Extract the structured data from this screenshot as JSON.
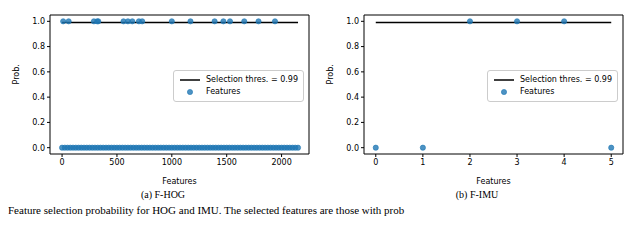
{
  "chart_data": [
    {
      "type": "scatter",
      "title": "(a) F-HOG",
      "x_label": "Features",
      "y_label": "Prob.",
      "xlim": [
        -110,
        2250
      ],
      "xticks": [
        0,
        500,
        1000,
        1500,
        2000
      ],
      "ylim": [
        -0.05,
        1.05
      ],
      "yticks": [
        {
          "value": 0,
          "label": "0.0"
        },
        {
          "value": 0.2,
          "label": "0.2"
        },
        {
          "value": 0.4,
          "label": "0.4"
        },
        {
          "value": 0.6,
          "label": "0.6"
        },
        {
          "value": 0.8,
          "label": "0.8"
        },
        {
          "value": 1,
          "label": "1.0"
        }
      ],
      "grid": false,
      "legend": "right",
      "series": [
        {
          "name": "Selection thres. = 0.99",
          "type": "line",
          "color": "#000000",
          "x": [
            0,
            2150
          ],
          "values": [
            0.99,
            0.99
          ]
        },
        {
          "name": "Features",
          "type": "scatter",
          "color": "#1f77b4",
          "marker": "circle",
          "x": [
            0,
            25,
            50,
            75,
            100,
            125,
            150,
            175,
            200,
            225,
            250,
            275,
            300,
            325,
            350,
            375,
            400,
            425,
            450,
            475,
            500,
            525,
            550,
            575,
            600,
            625,
            650,
            675,
            700,
            725,
            750,
            775,
            800,
            825,
            850,
            875,
            900,
            925,
            950,
            975,
            1000,
            1025,
            1050,
            1075,
            1100,
            1125,
            1150,
            1175,
            1200,
            1225,
            1250,
            1275,
            1300,
            1325,
            1350,
            1375,
            1400,
            1425,
            1450,
            1475,
            1500,
            1525,
            1550,
            1575,
            1600,
            1625,
            1650,
            1675,
            1700,
            1725,
            1750,
            1775,
            1800,
            1825,
            1850,
            1875,
            1900,
            1925,
            1950,
            1975,
            2000,
            2025,
            2050,
            2075,
            2100,
            2125,
            2150,
            10,
            60,
            290,
            320,
            330,
            560,
            600,
            640,
            700,
            730,
            1000,
            1170,
            1390,
            1470,
            1530,
            1660,
            1790,
            1940
          ],
          "values": [
            0,
            0,
            0,
            0,
            0,
            0,
            0,
            0,
            0,
            0,
            0,
            0,
            0,
            0,
            0,
            0,
            0,
            0,
            0,
            0,
            0,
            0,
            0,
            0,
            0,
            0,
            0,
            0,
            0,
            0,
            0,
            0,
            0,
            0,
            0,
            0,
            0,
            0,
            0,
            0,
            0,
            0,
            0,
            0,
            0,
            0,
            0,
            0,
            0,
            0,
            0,
            0,
            0,
            0,
            0,
            0,
            0,
            0,
            0,
            0,
            0,
            0,
            0,
            0,
            0,
            0,
            0,
            0,
            0,
            0,
            0,
            0,
            0,
            0,
            0,
            0,
            0,
            0,
            0,
            0,
            0,
            0,
            0,
            0,
            0,
            0,
            0,
            1,
            1,
            1,
            1,
            1,
            1,
            1,
            1,
            1,
            1,
            1,
            1,
            1,
            1,
            1,
            1,
            1,
            1
          ]
        }
      ]
    },
    {
      "type": "scatter",
      "title": "(b) F-IMU",
      "x_label": "Features",
      "y_label": "Prob.",
      "xlim": [
        -0.25,
        5.25
      ],
      "xticks": [
        0,
        1,
        2,
        3,
        4,
        5
      ],
      "ylim": [
        -0.05,
        1.05
      ],
      "yticks": [
        {
          "value": 0,
          "label": "0.0"
        },
        {
          "value": 0.2,
          "label": "0.2"
        },
        {
          "value": 0.4,
          "label": "0.4"
        },
        {
          "value": 0.6,
          "label": "0.6"
        },
        {
          "value": 0.8,
          "label": "0.8"
        },
        {
          "value": 1,
          "label": "1.0"
        }
      ],
      "grid": false,
      "legend": "right",
      "series": [
        {
          "name": "Selection thres. = 0.99",
          "type": "line",
          "color": "#000000",
          "x": [
            0,
            5
          ],
          "values": [
            0.99,
            0.99
          ]
        },
        {
          "name": "Features",
          "type": "scatter",
          "color": "#1f77b4",
          "marker": "circle",
          "x": [
            0,
            1,
            2,
            3,
            4,
            5
          ],
          "values": [
            0,
            0,
            1,
            1,
            1,
            0
          ]
        }
      ]
    }
  ],
  "caption": "Feature selection probability for HOG and IMU. The selected features are those with prob"
}
